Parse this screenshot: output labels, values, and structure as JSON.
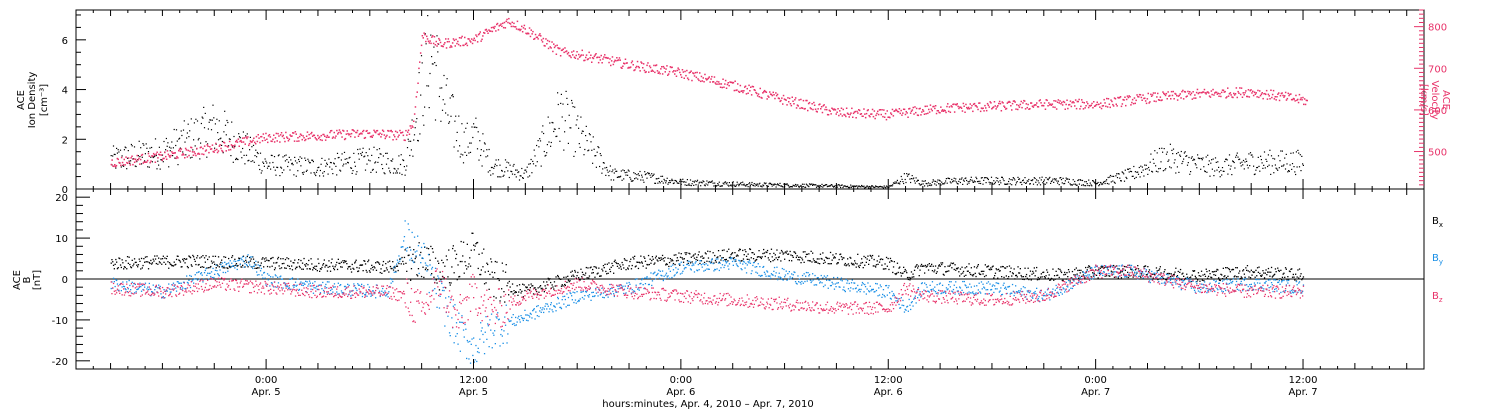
{
  "chart_data": [
    {
      "type": "scatter",
      "ylabel_left": [
        "ACE",
        "Ion Density",
        "[cm⁻³]"
      ],
      "ylabel_right": [
        "ACE",
        "Velocity",
        "[km/s]"
      ],
      "ylim_left": [
        0,
        7.2
      ],
      "ylim_right": [
        410,
        840
      ],
      "left_ticks": [
        0,
        2,
        4,
        6
      ],
      "right_ticks": [
        500,
        600,
        700,
        800
      ],
      "left_color": "#000000",
      "right_color": "#e8336a",
      "series": [
        {
          "axis": "left",
          "color": "#000000",
          "x": [
            -9,
            -6,
            -3,
            0,
            3,
            6,
            8,
            9.5,
            10.5,
            11.5,
            12,
            13,
            15,
            17,
            20,
            22,
            24,
            28,
            32,
            36,
            37,
            38,
            40,
            44,
            46,
            48,
            50,
            52,
            54,
            55,
            57,
            60
          ],
          "values": [
            1.2,
            1.5,
            2.5,
            1.0,
            0.9,
            1.2,
            1.0,
            5.5,
            3.0,
            1.8,
            2.2,
            1.0,
            0.6,
            3.0,
            0.6,
            0.5,
            0.3,
            0.2,
            0.15,
            0.1,
            0.5,
            0.25,
            0.35,
            0.35,
            0.35,
            0.25,
            0.6,
            1.3,
            1.0,
            0.9,
            1.1,
            1.1
          ]
        },
        {
          "axis": "right",
          "color": "#e8336a",
          "x": [
            -9,
            -6,
            -3,
            0,
            3,
            6,
            8,
            8.5,
            9,
            10,
            12,
            14,
            15,
            17,
            18,
            21,
            24,
            27,
            30,
            32,
            33,
            36,
            37,
            39,
            42,
            45,
            48,
            51,
            54,
            57,
            60,
            60.2
          ],
          "values": [
            475,
            490,
            510,
            535,
            540,
            545,
            540,
            570,
            780,
            760,
            770,
            815,
            795,
            740,
            735,
            710,
            690,
            660,
            625,
            605,
            595,
            590,
            595,
            605,
            610,
            615,
            615,
            630,
            640,
            645,
            625,
            620
          ]
        }
      ]
    },
    {
      "type": "scatter",
      "ylabel": [
        "ACE",
        "B",
        "[nT]"
      ],
      "ylim": [
        -22,
        22
      ],
      "yticks": [
        -20,
        -10,
        0,
        10,
        20
      ],
      "zero_line": true,
      "series": [
        {
          "name": "Bx",
          "color": "#000000",
          "x": [
            -9,
            -4,
            0,
            4,
            7,
            9,
            10,
            11,
            12,
            13,
            15,
            18,
            21,
            24,
            27,
            30,
            33,
            36,
            37,
            38,
            42,
            46,
            48,
            50,
            54,
            57,
            60
          ],
          "values": [
            4,
            4.5,
            4,
            3.5,
            3,
            5,
            2,
            4,
            7,
            0,
            -3,
            1,
            4,
            5,
            6,
            6,
            5,
            4,
            1,
            3,
            2,
            1,
            2,
            2,
            1,
            2,
            1
          ]
        },
        {
          "name": "By",
          "color": "#1a8fe6",
          "x": [
            -9,
            -6,
            -3,
            -1,
            0,
            3,
            7,
            8,
            9,
            10,
            11,
            12,
            13,
            15,
            18,
            21,
            24,
            27,
            30,
            33,
            36,
            37,
            38,
            42,
            45,
            48,
            50,
            54,
            57,
            60
          ],
          "values": [
            -1,
            -3,
            2,
            5,
            0,
            -2,
            -3,
            10,
            5,
            -4,
            -12,
            -17,
            -12,
            -9,
            -4,
            -2,
            3,
            4,
            1,
            -1,
            -3,
            -7,
            -2,
            -2,
            -4,
            2,
            2,
            -2,
            -1,
            -2
          ]
        },
        {
          "name": "Bz",
          "color": "#e8336a",
          "x": [
            -9,
            -6,
            -3,
            0,
            3,
            7,
            8,
            9,
            10,
            11,
            12,
            13,
            15,
            18,
            21,
            24,
            27,
            30,
            33,
            36,
            37,
            38,
            42,
            45,
            48,
            50,
            54,
            57,
            60
          ],
          "values": [
            -2,
            -3,
            -1,
            -2,
            -3,
            -3,
            -4,
            -8,
            0,
            -10,
            -3,
            -8,
            -4,
            -1,
            -3,
            -4,
            -5,
            -6,
            -7,
            -7,
            -2,
            -4,
            -5,
            -4,
            2,
            2,
            -2,
            -3,
            -3
          ]
        }
      ]
    }
  ],
  "legend": {
    "bx": "B",
    "bx_sub": "x",
    "by": "B",
    "by_sub": "y",
    "bz": "B",
    "bz_sub": "z"
  },
  "x_axis": {
    "ticks": [
      {
        "x": 0,
        "time": "0:00",
        "date": "Apr. 5"
      },
      {
        "x": 12,
        "time": "12:00",
        "date": "Apr. 5"
      },
      {
        "x": 24,
        "time": "0:00",
        "date": "Apr. 6"
      },
      {
        "x": 36,
        "time": "12:00",
        "date": "Apr. 6"
      },
      {
        "x": 48,
        "time": "0:00",
        "date": "Apr. 7"
      },
      {
        "x": 60,
        "time": "12:00",
        "date": "Apr. 7"
      }
    ],
    "label": "hours:minutes, Apr.  4, 2010 – Apr.  7, 2010",
    "xlim": [
      -11,
      67
    ]
  },
  "colors": {
    "black": "#000000",
    "pink": "#e8336a",
    "blue": "#1a8fe6"
  }
}
